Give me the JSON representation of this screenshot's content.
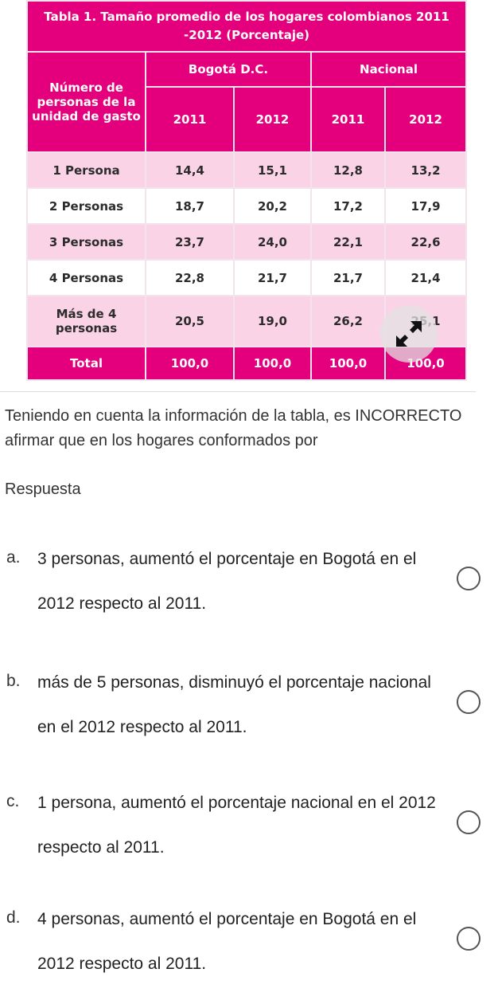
{
  "table": {
    "title": "Tabla 1. Tamaño promedio de los hogares colombianos 2011 -2012 (Porcentaje)",
    "header_label": "Número de personas de la unidad de gasto",
    "region_1": "Bogotá D.C.",
    "region_2": "Nacional",
    "years": [
      "2011",
      "2012",
      "2011",
      "2012"
    ],
    "rows": [
      {
        "label": "1 Persona",
        "values": [
          "14,4",
          "15,1",
          "12,8",
          "13,2"
        ]
      },
      {
        "label": "2 Personas",
        "values": [
          "18,7",
          "20,2",
          "17,2",
          "17,9"
        ]
      },
      {
        "label": "3 Personas",
        "values": [
          "23,7",
          "24,0",
          "22,1",
          "22,6"
        ]
      },
      {
        "label": "4 Personas",
        "values": [
          "22,8",
          "21,7",
          "21,7",
          "21,4"
        ]
      },
      {
        "label": "Más de 4 personas",
        "values": [
          "20,5",
          "19,0",
          "26,2",
          "25,1"
        ]
      },
      {
        "label": "Total",
        "values": [
          "100,0",
          "100,0",
          "100,0",
          "100,0"
        ]
      }
    ],
    "colors": {
      "header": "#e4007d",
      "shaded_row": "#fbd3e6",
      "plain_row": "#ffffff"
    },
    "overlay_icon": "expand-icon"
  },
  "question": "Teniendo en cuenta la información de la tabla, es INCORRECTO afirmar que en los hogares conformados por",
  "answer_label": "Respuesta",
  "options": [
    {
      "letter": "a.",
      "text": "3 personas, aumentó el porcentaje en Bogotá en el 2012 respecto al 2011."
    },
    {
      "letter": "b.",
      "text": "más de 5 personas, disminuyó el porcentaje nacional en el 2012 respecto al 2011."
    },
    {
      "letter": "c.",
      "text": "1 persona, aumentó el porcentaje nacional en el 2012 respecto al 2011."
    },
    {
      "letter": "d.",
      "text": "4 personas, aumentó el porcentaje en Bogotá en el 2012 respecto al 2011."
    }
  ]
}
